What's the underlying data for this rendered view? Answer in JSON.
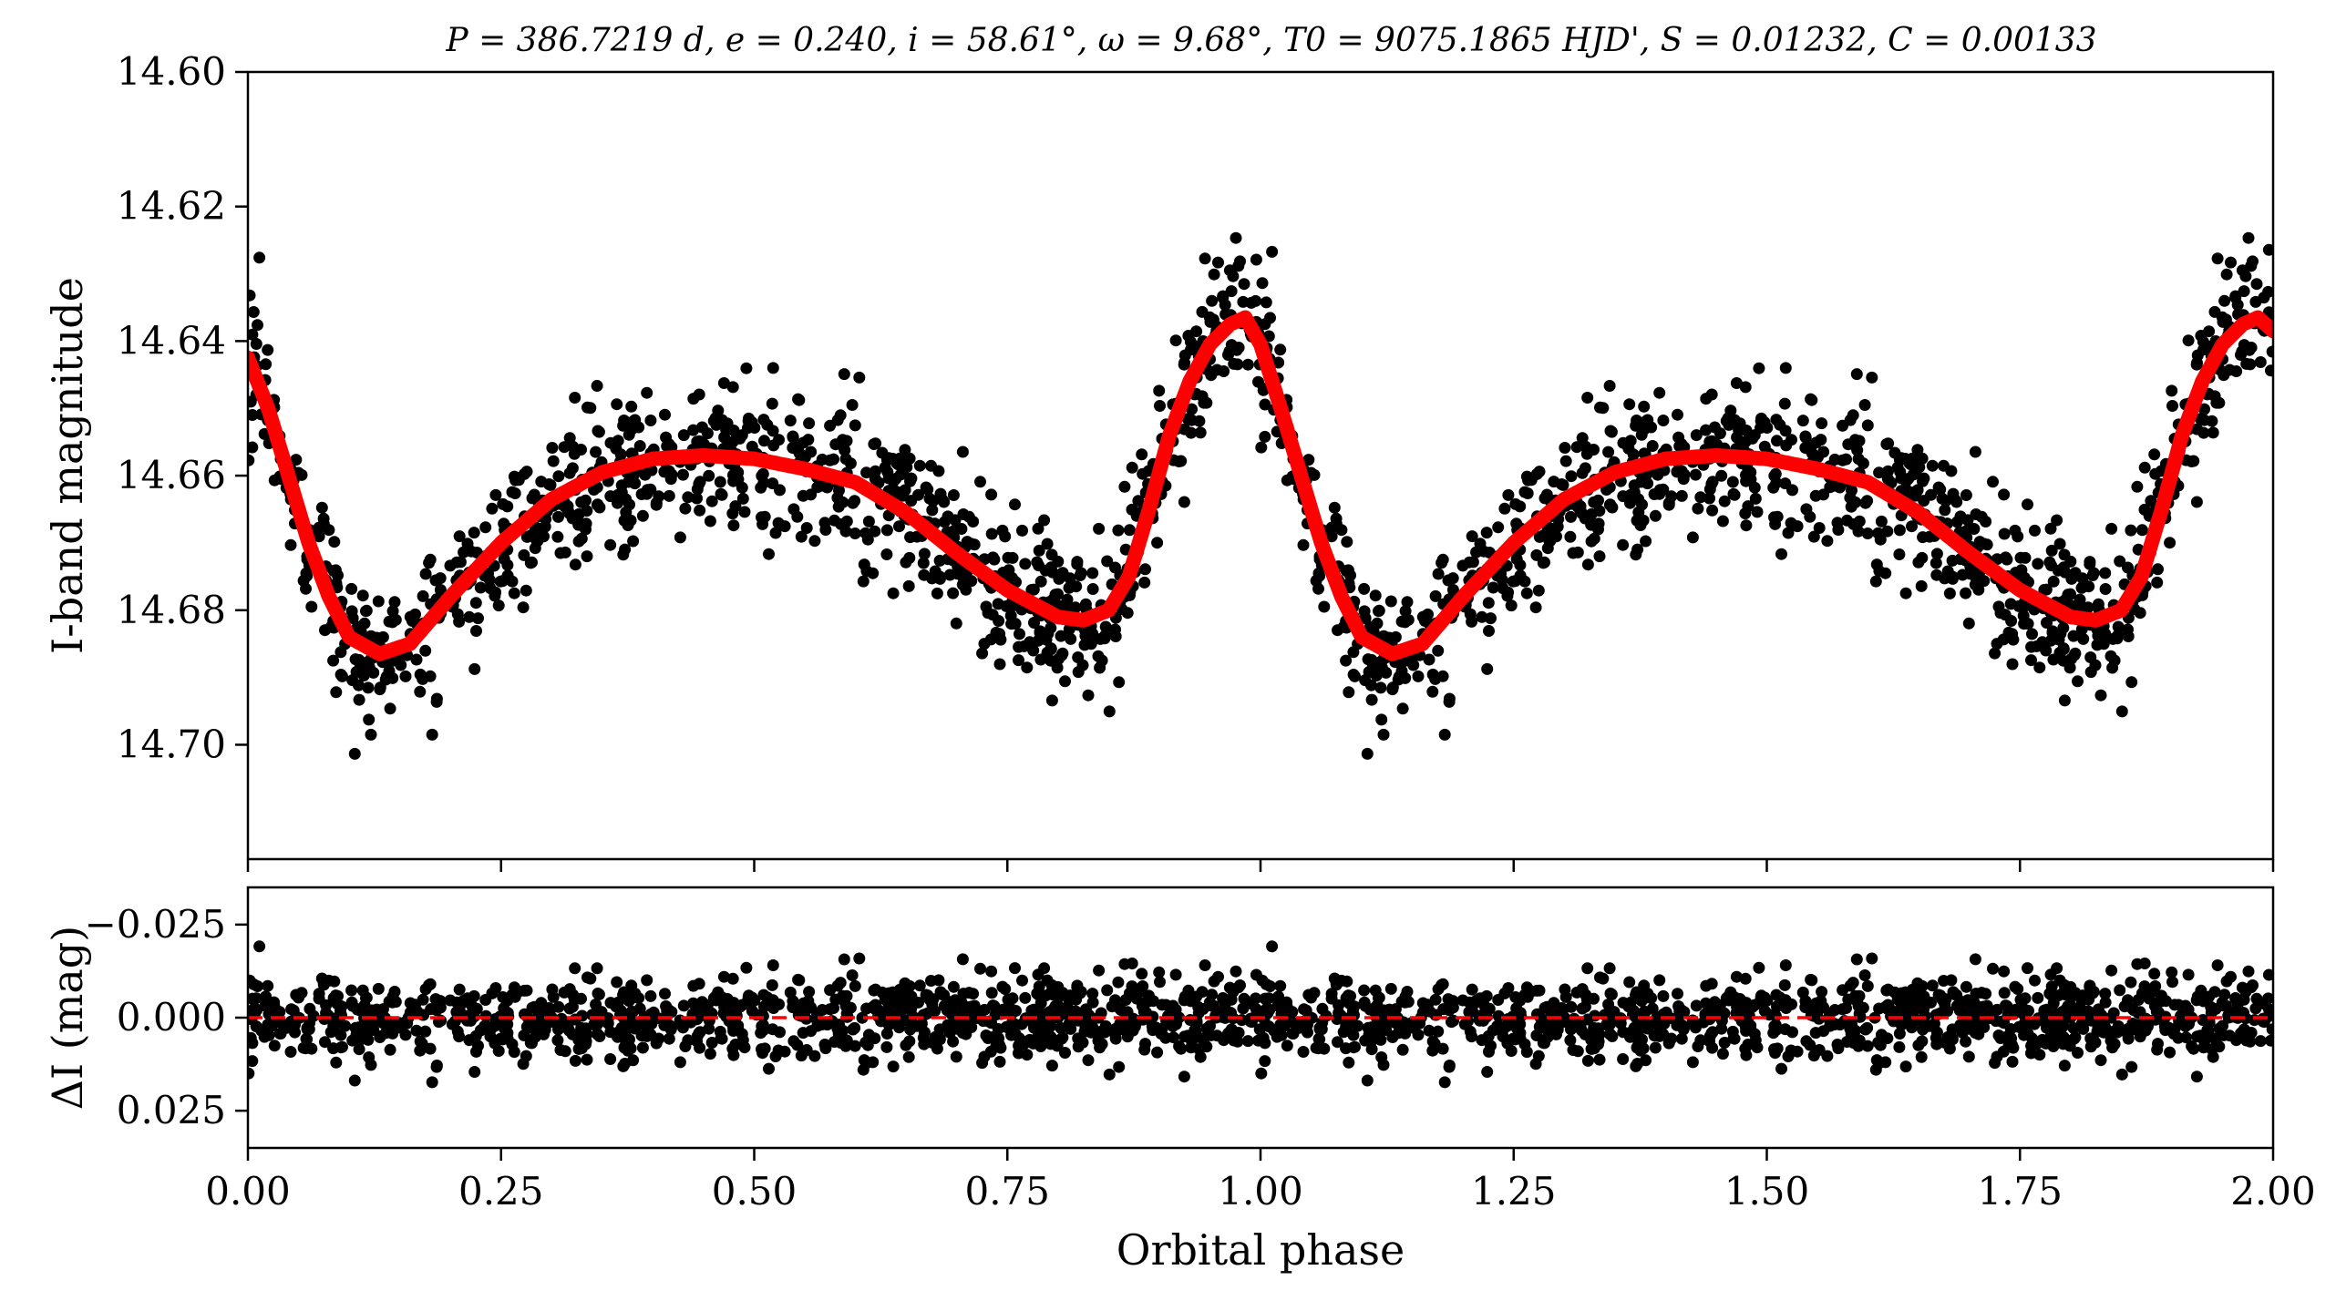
{
  "chart_data": [
    {
      "type": "scatter",
      "panel": "top",
      "title": "P = 386.7219 d, e = 0.240, i = 58.61°, ω = 9.68°, T0 = 9075.1865 HJD', S = 0.01232, C = 0.00133",
      "xlabel": "",
      "ylabel": "I-band magnitude",
      "xlim": [
        0.0,
        2.0
      ],
      "ylim": [
        14.717,
        14.6
      ],
      "y_inverted": true,
      "y_ticks": [
        14.6,
        14.62,
        14.64,
        14.66,
        14.68,
        14.7
      ],
      "y_tick_labels": [
        "14.60",
        "14.62",
        "14.64",
        "14.66",
        "14.68",
        "14.70"
      ],
      "x_ticks": [
        0.0,
        0.25,
        0.5,
        0.75,
        1.0,
        1.25,
        1.5,
        1.75,
        2.0
      ],
      "grid": false,
      "legend": "none",
      "series": [
        {
          "kind": "scatter",
          "color": "#000000",
          "note_style": "black filled circles",
          "points_per_phase_cycle": 1000,
          "scatter_sigma_mag": 0.0055
        },
        {
          "kind": "line",
          "color": "#ff0000",
          "model_points": [
            [
              0.0,
              14.6425
            ],
            [
              0.02,
              14.65
            ],
            [
              0.04,
              14.66
            ],
            [
              0.06,
              14.67
            ],
            [
              0.08,
              14.678
            ],
            [
              0.1,
              14.684
            ],
            [
              0.13,
              14.6865
            ],
            [
              0.16,
              14.685
            ],
            [
              0.2,
              14.678
            ],
            [
              0.25,
              14.67
            ],
            [
              0.3,
              14.6635
            ],
            [
              0.35,
              14.6595
            ],
            [
              0.4,
              14.6575
            ],
            [
              0.45,
              14.657
            ],
            [
              0.5,
              14.6575
            ],
            [
              0.55,
              14.659
            ],
            [
              0.6,
              14.661
            ],
            [
              0.65,
              14.6655
            ],
            [
              0.7,
              14.6715
            ],
            [
              0.75,
              14.677
            ],
            [
              0.8,
              14.681
            ],
            [
              0.825,
              14.6815
            ],
            [
              0.85,
              14.68
            ],
            [
              0.87,
              14.675
            ],
            [
              0.89,
              14.665
            ],
            [
              0.91,
              14.654
            ],
            [
              0.93,
              14.646
            ],
            [
              0.95,
              14.6405
            ],
            [
              0.97,
              14.6375
            ],
            [
              0.985,
              14.6365
            ],
            [
              1.0,
              14.6405
            ],
            [
              1.02,
              14.65
            ],
            [
              1.04,
              14.66
            ],
            [
              1.06,
              14.67
            ],
            [
              1.08,
              14.678
            ],
            [
              1.1,
              14.684
            ],
            [
              1.13,
              14.6865
            ],
            [
              1.16,
              14.685
            ],
            [
              1.2,
              14.678
            ],
            [
              1.25,
              14.67
            ],
            [
              1.3,
              14.6635
            ],
            [
              1.35,
              14.6595
            ],
            [
              1.4,
              14.6575
            ],
            [
              1.45,
              14.657
            ],
            [
              1.5,
              14.6575
            ],
            [
              1.55,
              14.659
            ],
            [
              1.6,
              14.661
            ],
            [
              1.65,
              14.6655
            ],
            [
              1.7,
              14.6715
            ],
            [
              1.75,
              14.677
            ],
            [
              1.8,
              14.681
            ],
            [
              1.825,
              14.6815
            ],
            [
              1.85,
              14.68
            ],
            [
              1.87,
              14.675
            ],
            [
              1.89,
              14.665
            ],
            [
              1.91,
              14.654
            ],
            [
              1.93,
              14.646
            ],
            [
              1.95,
              14.6405
            ],
            [
              1.97,
              14.6375
            ],
            [
              1.985,
              14.6365
            ],
            [
              2.0,
              14.6385
            ]
          ]
        }
      ]
    },
    {
      "type": "scatter",
      "panel": "bottom",
      "title": "",
      "xlabel": "Orbital phase",
      "ylabel": "ΔI (mag)",
      "xlim": [
        0.0,
        2.0
      ],
      "ylim": [
        0.035,
        -0.035
      ],
      "y_inverted": true,
      "y_ticks": [
        -0.025,
        0.0,
        0.025
      ],
      "y_tick_labels": [
        "−0.025",
        "0.000",
        "0.025"
      ],
      "x_ticks": [
        0.0,
        0.25,
        0.5,
        0.75,
        1.0,
        1.25,
        1.5,
        1.75,
        2.0
      ],
      "x_tick_labels": [
        "0.00",
        "0.25",
        "0.50",
        "0.75",
        "1.00",
        "1.25",
        "1.50",
        "1.75",
        "2.00"
      ],
      "grid": false,
      "legend": "none",
      "series": [
        {
          "kind": "scatter",
          "color": "#000000",
          "scatter_sigma_mag": 0.0055
        },
        {
          "kind": "hline",
          "y": 0.0,
          "color": "#ff0000",
          "style": "dashed"
        }
      ]
    }
  ]
}
